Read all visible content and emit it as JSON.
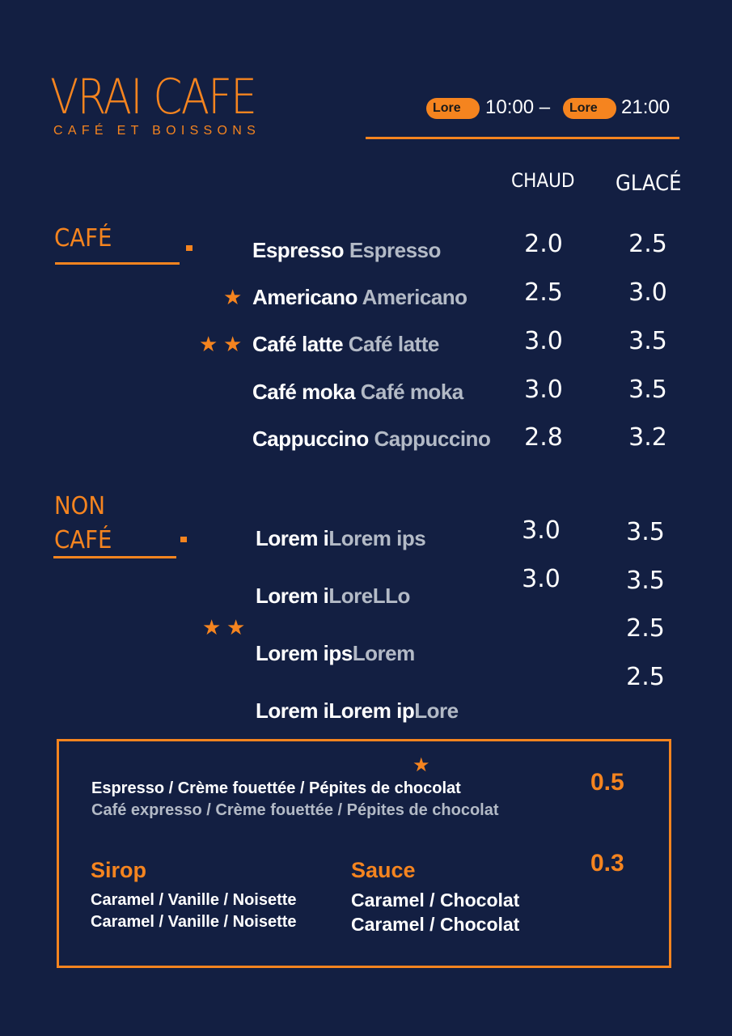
{
  "header": {
    "title": "VRAI CAFE",
    "subtitle": "CAFÉ ET BOISSONS",
    "hours": {
      "open_label": "Lore",
      "open_time": "10:00 –",
      "close_label": "Lore",
      "close_time": "21:00"
    }
  },
  "columns": {
    "hot": "CHAUD",
    "iced": "GLACÉ"
  },
  "cafe": {
    "heading": "CAFÉ",
    "items": [
      {
        "name": "Espresso",
        "alt": "Espresso",
        "stars": 0,
        "hot": "2.0",
        "iced": "2.5"
      },
      {
        "name": "Americano",
        "alt": "Americano",
        "stars": 1,
        "hot": "2.5",
        "iced": "3.0"
      },
      {
        "name": "Café latte",
        "alt": "Café latte",
        "stars": 2,
        "hot": "3.0",
        "iced": "3.5"
      },
      {
        "name": "Café moka",
        "alt": "Café moka",
        "stars": 0,
        "hot": "3.0",
        "iced": "3.5"
      },
      {
        "name": "Cappuccino",
        "alt": "Cappuccino",
        "stars": 0,
        "hot": "2.8",
        "iced": "3.2"
      }
    ]
  },
  "noncafe": {
    "heading_line1": "NON",
    "heading_line2": "CAFÉ",
    "items": [
      {
        "name": "Lorem i",
        "alt": "Lorem ips"
      },
      {
        "name": "Lorem i",
        "alt": "LoreLLo"
      },
      {
        "name": "Lorem ips",
        "alt": "Lorem"
      },
      {
        "name": "Lorem iLorem ip",
        "alt": "Lore"
      }
    ],
    "hot_prices": [
      "3.0",
      "3.0"
    ],
    "iced_prices": [
      "3.5",
      "3.5",
      "2.5",
      "2.5"
    ],
    "stars": 2
  },
  "extras": {
    "toppings": "Espresso / Crème fouettée / Pépites de chocolat",
    "toppings_alt": "Café expresso / Crème fouettée / Pépites de chocolat",
    "toppings_price": "0.5",
    "sirop": {
      "heading": "Sirop",
      "line1": "Caramel / Vanille / Noisette",
      "line2": "Caramel / Vanille / Noisette"
    },
    "sauce": {
      "heading": "Sauce",
      "line1": "Caramel / Chocolat",
      "line2": "Caramel / Chocolat"
    },
    "syrup_price": "0.3"
  },
  "colors": {
    "background": "#131f42",
    "accent": "#f5841f",
    "secondary_text": "#b3bac6"
  },
  "icons": {
    "star": "star-icon"
  }
}
